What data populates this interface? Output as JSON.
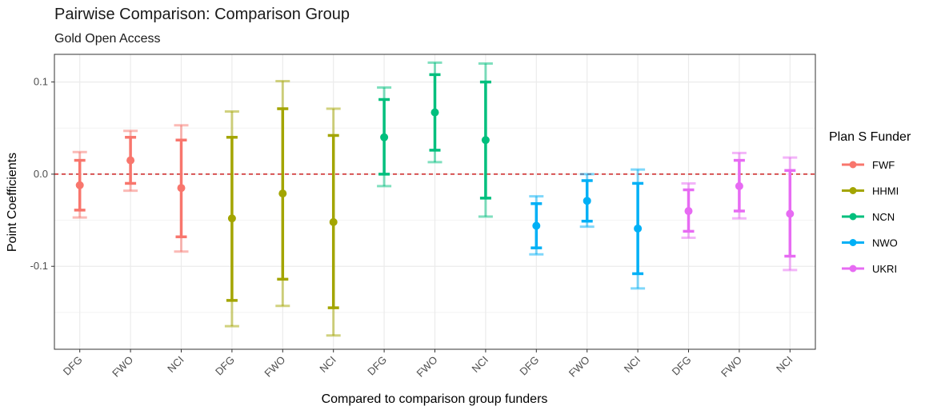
{
  "chart_data": {
    "type": "errorbar",
    "title": "Pairwise Comparison: Comparison Group",
    "subtitle": "Gold Open Access",
    "xlabel": "Compared to comparison group funders",
    "ylabel": "Point Coefficients",
    "ylim": [
      -0.19,
      0.13
    ],
    "yticks": [
      0.1,
      0.0,
      -0.1
    ],
    "ytick_labels": [
      "0.1",
      "0.0",
      "-0.1"
    ],
    "reference_line": {
      "y": 0,
      "style": "dashed",
      "color": "#cc2222"
    },
    "grid": true,
    "legend": {
      "title": "Plan S Funder",
      "position": "right"
    },
    "categories": [
      "DFG",
      "FWO",
      "NCI",
      "DFG",
      "FWO",
      "NCI",
      "DFG",
      "FWO",
      "NCI",
      "DFG",
      "FWO",
      "NCI",
      "DFG",
      "FWO",
      "NCI"
    ],
    "series": [
      {
        "name": "FWF",
        "color": "#F8766D",
        "points": [
          {
            "x_index": 0,
            "estimate": -0.012,
            "ci95": [
              -0.047,
              0.024
            ],
            "ci90": [
              -0.039,
              0.015
            ]
          },
          {
            "x_index": 1,
            "estimate": 0.015,
            "ci95": [
              -0.018,
              0.047
            ],
            "ci90": [
              -0.01,
              0.04
            ]
          },
          {
            "x_index": 2,
            "estimate": -0.015,
            "ci95": [
              -0.084,
              0.053
            ],
            "ci90": [
              -0.068,
              0.037
            ]
          }
        ]
      },
      {
        "name": "HHMI",
        "color": "#A3A500",
        "points": [
          {
            "x_index": 3,
            "estimate": -0.048,
            "ci95": [
              -0.165,
              0.068
            ],
            "ci90": [
              -0.137,
              0.04
            ]
          },
          {
            "x_index": 4,
            "estimate": -0.021,
            "ci95": [
              -0.143,
              0.101
            ],
            "ci90": [
              -0.114,
              0.071
            ]
          },
          {
            "x_index": 5,
            "estimate": -0.052,
            "ci95": [
              -0.175,
              0.071
            ],
            "ci90": [
              -0.145,
              0.042
            ]
          }
        ]
      },
      {
        "name": "NCN",
        "color": "#00BF7D",
        "points": [
          {
            "x_index": 6,
            "estimate": 0.04,
            "ci95": [
              -0.013,
              0.094
            ],
            "ci90": [
              0.0,
              0.081
            ]
          },
          {
            "x_index": 7,
            "estimate": 0.067,
            "ci95": [
              0.013,
              0.121
            ],
            "ci90": [
              0.026,
              0.108
            ]
          },
          {
            "x_index": 8,
            "estimate": 0.037,
            "ci95": [
              -0.046,
              0.12
            ],
            "ci90": [
              -0.026,
              0.1
            ]
          }
        ]
      },
      {
        "name": "NWO",
        "color": "#00B0F6",
        "points": [
          {
            "x_index": 9,
            "estimate": -0.056,
            "ci95": [
              -0.087,
              -0.024
            ],
            "ci90": [
              -0.08,
              -0.032
            ]
          },
          {
            "x_index": 10,
            "estimate": -0.029,
            "ci95": [
              -0.057,
              0.0
            ],
            "ci90": [
              -0.051,
              -0.007
            ]
          },
          {
            "x_index": 11,
            "estimate": -0.059,
            "ci95": [
              -0.124,
              0.005
            ],
            "ci90": [
              -0.108,
              -0.01
            ]
          }
        ]
      },
      {
        "name": "UKRI",
        "color": "#E76BF3",
        "points": [
          {
            "x_index": 12,
            "estimate": -0.04,
            "ci95": [
              -0.069,
              -0.01
            ],
            "ci90": [
              -0.062,
              -0.017
            ]
          },
          {
            "x_index": 13,
            "estimate": -0.013,
            "ci95": [
              -0.048,
              0.023
            ],
            "ci90": [
              -0.04,
              0.015
            ]
          },
          {
            "x_index": 14,
            "estimate": -0.043,
            "ci95": [
              -0.104,
              0.018
            ],
            "ci90": [
              -0.089,
              0.004
            ]
          }
        ]
      }
    ]
  }
}
